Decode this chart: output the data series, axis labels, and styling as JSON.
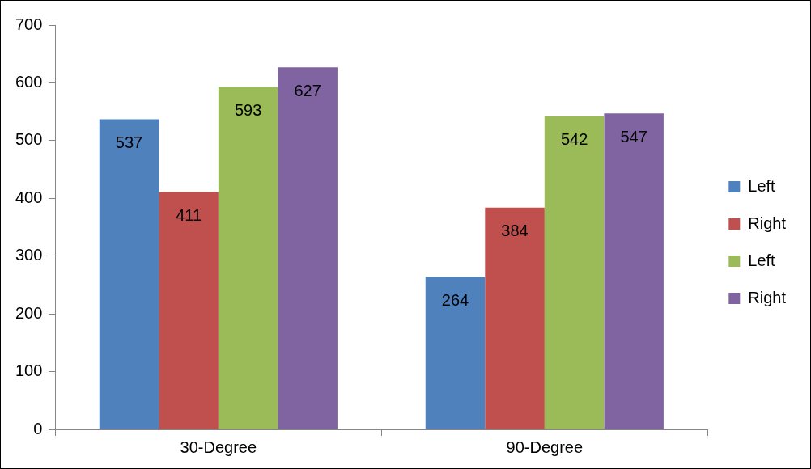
{
  "chart_data": {
    "type": "bar",
    "categories": [
      "30-Degree",
      "90-Degree"
    ],
    "series": [
      {
        "name": "Left",
        "color": "#4f81bd",
        "values": [
          537,
          264
        ]
      },
      {
        "name": "Right",
        "color": "#c0504d",
        "values": [
          411,
          384
        ]
      },
      {
        "name": "Left",
        "color": "#9bbb59",
        "values": [
          593,
          542
        ]
      },
      {
        "name": "Right",
        "color": "#8064a2",
        "values": [
          627,
          547
        ]
      }
    ],
    "ylim": [
      0,
      700
    ],
    "yticks": [
      0,
      100,
      200,
      300,
      400,
      500,
      600,
      700
    ],
    "grid": false,
    "legend": "right",
    "data_labels": true
  }
}
